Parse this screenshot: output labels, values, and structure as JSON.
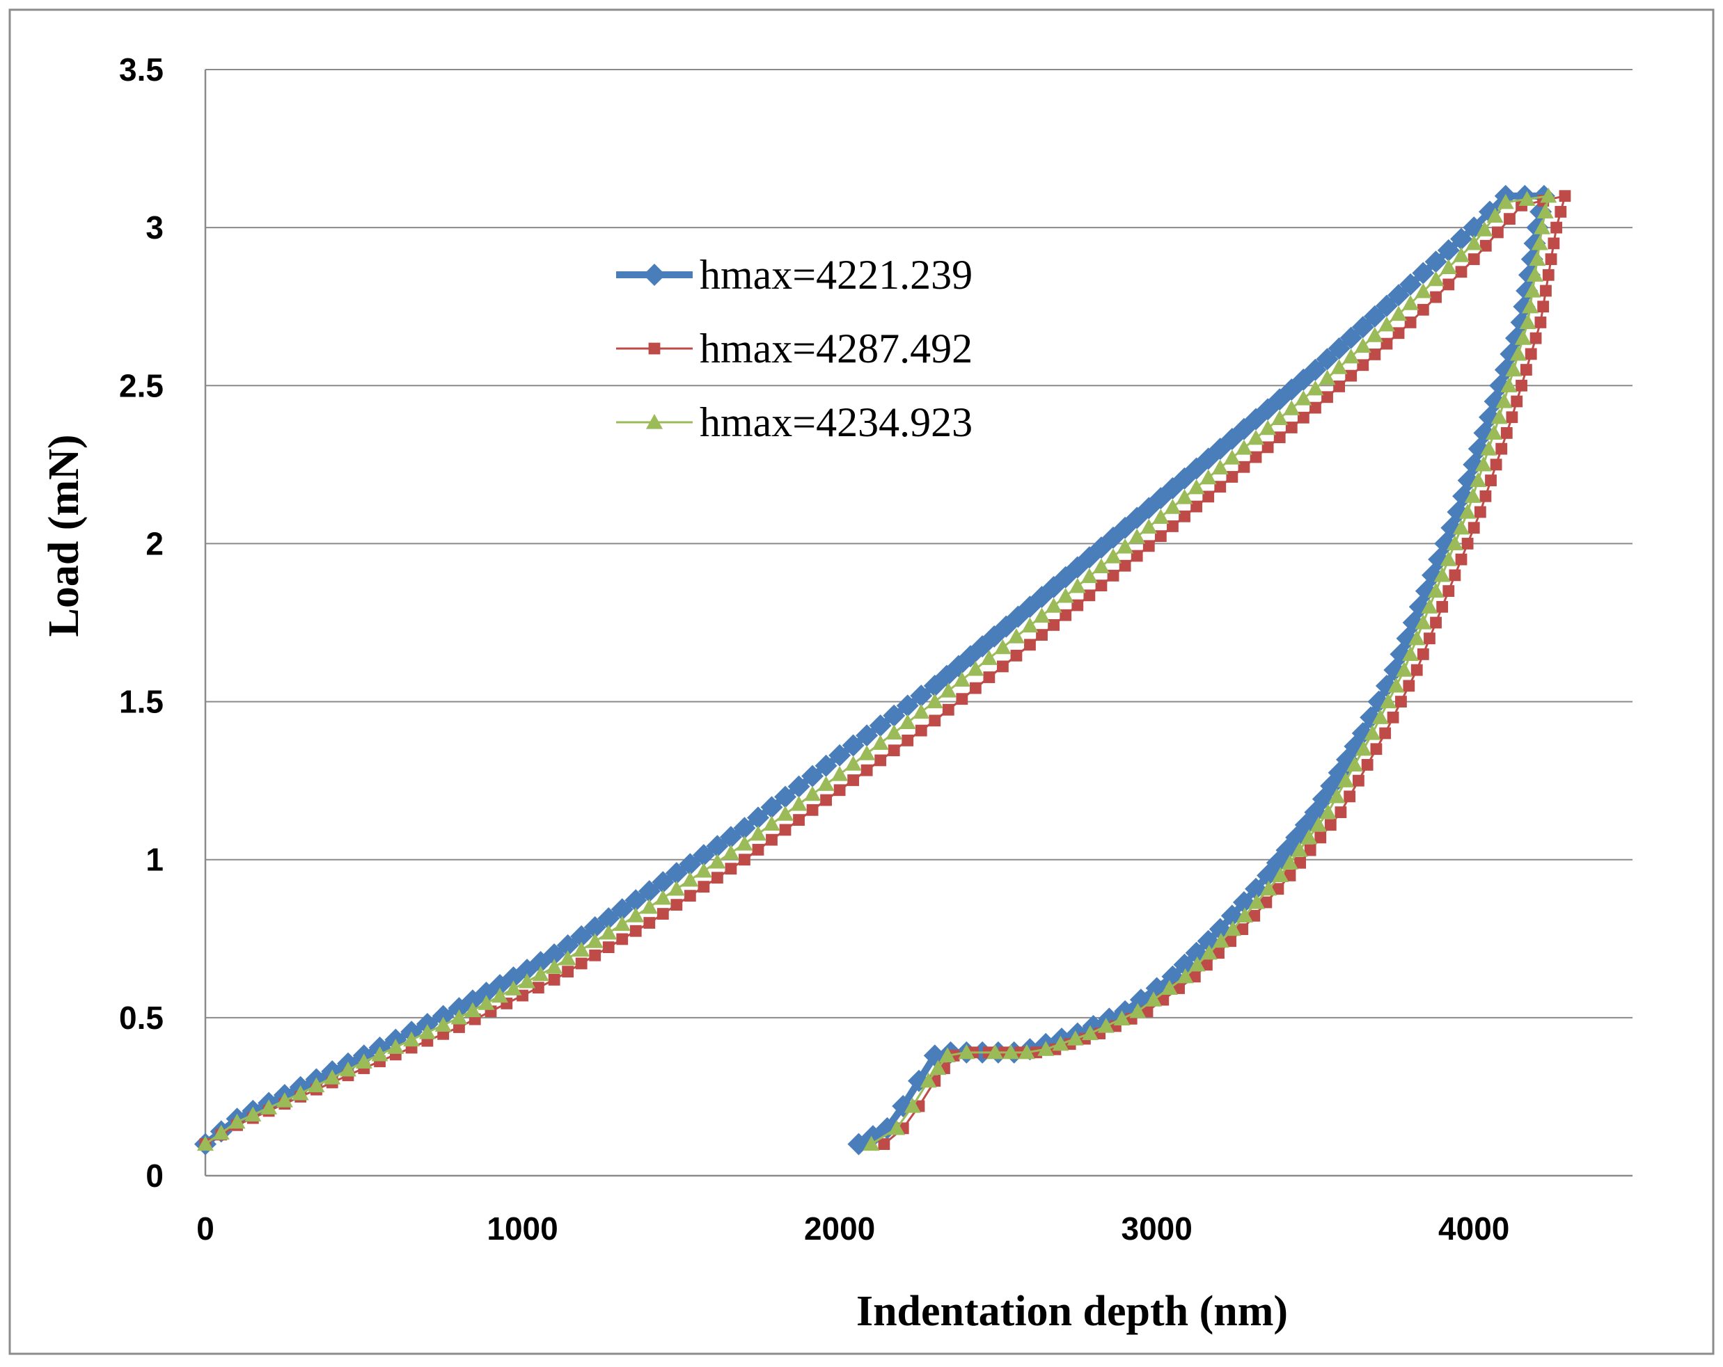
{
  "chart_data": {
    "type": "line",
    "title": "",
    "xlabel": "Indentation depth (nm)",
    "ylabel": "Load (mN)",
    "xlim": [
      0,
      4500
    ],
    "ylim": [
      0,
      3.5
    ],
    "x_ticks": [
      "0",
      "1000",
      "2000",
      "3000",
      "4000"
    ],
    "x_tick_values": [
      0,
      1000,
      2000,
      3000,
      4000
    ],
    "y_ticks": [
      "0",
      "0.5",
      "1",
      "1.5",
      "2",
      "2.5",
      "3",
      "3.5"
    ],
    "y_tick_values": [
      0,
      0.5,
      1,
      1.5,
      2,
      2.5,
      3,
      3.5
    ],
    "grid": "horizontal",
    "legend_position": "upper-center",
    "series": [
      {
        "name": "hmax=4221.239",
        "color": "#4a7ebb",
        "marker": "diamond",
        "x": [
          0,
          100,
          300,
          500,
          800,
          1100,
          1400,
          1700,
          2000,
          2300,
          2600,
          2900,
          3200,
          3500,
          3800,
          4000,
          4100,
          4221,
          4200,
          4150,
          4050,
          3950,
          3850,
          3750,
          3650,
          3500,
          3350,
          3200,
          3050,
          2900,
          2750,
          2600,
          2550,
          2450,
          2350,
          2300,
          2250,
          2200,
          2150,
          2060
        ],
        "y": [
          0.1,
          0.18,
          0.28,
          0.38,
          0.53,
          0.7,
          0.9,
          1.1,
          1.33,
          1.55,
          1.8,
          2.05,
          2.3,
          2.55,
          2.82,
          3.0,
          3.1,
          3.1,
          3.0,
          2.7,
          2.4,
          2.1,
          1.85,
          1.6,
          1.4,
          1.15,
          0.95,
          0.78,
          0.63,
          0.52,
          0.45,
          0.4,
          0.39,
          0.39,
          0.39,
          0.38,
          0.3,
          0.22,
          0.15,
          0.1
        ]
      },
      {
        "name": "hmax=4287.492",
        "color": "#be4b48",
        "marker": "square",
        "x": [
          0,
          100,
          300,
          500,
          800,
          1100,
          1400,
          1700,
          2000,
          2300,
          2600,
          2900,
          3200,
          3500,
          3800,
          4000,
          4150,
          4287,
          4260,
          4210,
          4120,
          4020,
          3920,
          3820,
          3720,
          3580,
          3420,
          3270,
          3120,
          2970,
          2820,
          2680,
          2620,
          2520,
          2420,
          2360,
          2300,
          2250,
          2200,
          2140
        ],
        "y": [
          0.1,
          0.16,
          0.25,
          0.34,
          0.47,
          0.62,
          0.8,
          1.0,
          1.22,
          1.44,
          1.68,
          1.93,
          2.18,
          2.43,
          2.7,
          2.9,
          3.07,
          3.1,
          3.0,
          2.7,
          2.4,
          2.1,
          1.85,
          1.6,
          1.4,
          1.15,
          0.95,
          0.78,
          0.63,
          0.52,
          0.45,
          0.4,
          0.39,
          0.39,
          0.39,
          0.38,
          0.3,
          0.22,
          0.15,
          0.1
        ]
      },
      {
        "name": "hmax=4234.923",
        "color": "#9bbb59",
        "marker": "triangle",
        "x": [
          0,
          100,
          300,
          500,
          800,
          1100,
          1400,
          1700,
          2000,
          2300,
          2600,
          2900,
          3200,
          3500,
          3800,
          4000,
          4100,
          4235,
          4215,
          4170,
          4080,
          3980,
          3880,
          3780,
          3680,
          3540,
          3390,
          3240,
          3090,
          2940,
          2790,
          2650,
          2590,
          2490,
          2400,
          2340,
          2280,
          2230,
          2180,
          2100
        ],
        "y": [
          0.1,
          0.17,
          0.26,
          0.36,
          0.5,
          0.66,
          0.85,
          1.05,
          1.27,
          1.5,
          1.74,
          1.99,
          2.24,
          2.49,
          2.76,
          2.95,
          3.08,
          3.1,
          3.0,
          2.7,
          2.4,
          2.1,
          1.85,
          1.6,
          1.4,
          1.15,
          0.95,
          0.78,
          0.63,
          0.52,
          0.45,
          0.4,
          0.39,
          0.39,
          0.39,
          0.38,
          0.3,
          0.22,
          0.15,
          0.1
        ]
      }
    ]
  }
}
